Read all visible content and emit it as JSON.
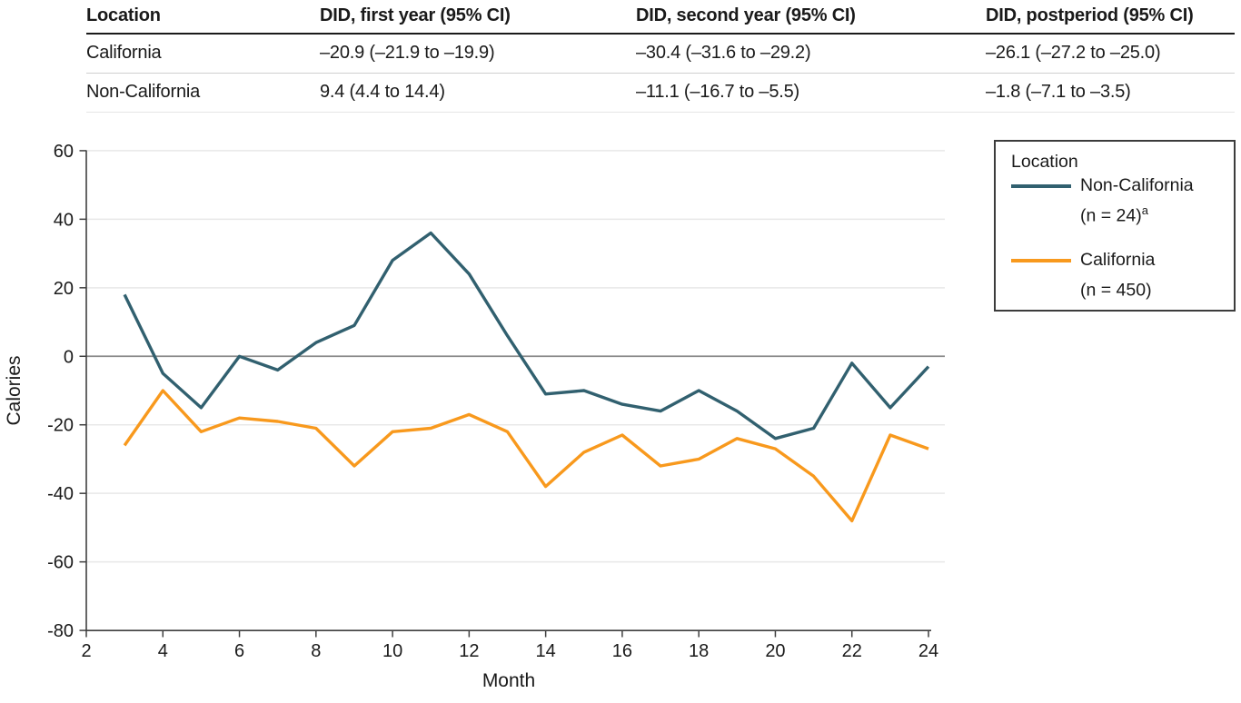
{
  "table": {
    "headers": [
      "Location",
      "DID, first year (95% CI)",
      "DID, second year (95% CI)",
      "DID, postperiod (95% CI)"
    ],
    "rows": [
      [
        "California",
        "–20.9 (–21.9 to –19.9)",
        "–30.4 (–31.6 to –29.2)",
        "–26.1 (–27.2 to –25.0)"
      ],
      [
        "Non-California",
        "9.4 (4.4 to 14.4)",
        "–11.1 (–16.7 to –5.5)",
        "–1.8 (–7.1 to –3.5)"
      ]
    ]
  },
  "legend": {
    "title": "Location",
    "items": [
      {
        "label": "Non-California",
        "sub": "(n = 24)",
        "sup": "a"
      },
      {
        "label": "California",
        "sub": "(n = 450)",
        "sup": ""
      }
    ]
  },
  "chart_data": {
    "type": "line",
    "title": "",
    "xlabel": "Month",
    "ylabel": "Calories",
    "xlim": [
      2,
      24
    ],
    "ylim": [
      -80,
      60
    ],
    "xticks": [
      2,
      4,
      6,
      8,
      10,
      12,
      14,
      16,
      18,
      20,
      22,
      24
    ],
    "yticks": [
      60,
      40,
      20,
      0,
      -20,
      -40,
      -60,
      -80
    ],
    "grid": "horizontal",
    "zero_line": true,
    "legend_position": "upper right outside",
    "x": [
      3,
      4,
      5,
      6,
      7,
      8,
      9,
      10,
      11,
      12,
      13,
      14,
      15,
      16,
      17,
      18,
      19,
      20,
      21,
      22,
      23,
      24
    ],
    "series": [
      {
        "name": "Non-California (n = 24)",
        "color": "#31606F",
        "values": [
          18,
          -5,
          -15,
          0,
          -4,
          4,
          9,
          28,
          36,
          24,
          6,
          -11,
          -10,
          -14,
          -16,
          -10,
          -16,
          -24,
          -21,
          -2,
          -15,
          -3
        ]
      },
      {
        "name": "California (n = 450)",
        "color": "#F8991D",
        "values": [
          -26,
          -10,
          -22,
          -18,
          -19,
          -21,
          -32,
          -22,
          -21,
          -17,
          -22,
          -38,
          -28,
          -23,
          -32,
          -30,
          -24,
          -27,
          -35,
          -48,
          -23,
          -27
        ]
      }
    ],
    "colors": {
      "gridline": "#e8e8e8",
      "zero_line": "#8a8a8a",
      "axis": "#3f3f3f"
    }
  }
}
